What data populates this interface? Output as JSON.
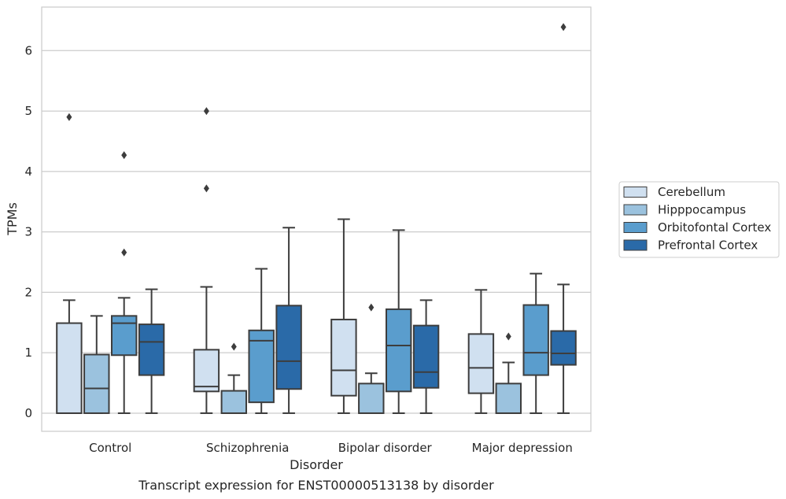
{
  "chart_data": {
    "type": "box",
    "caption": "Transcript expression for ENST00000513138 by disorder",
    "xlabel": "Disorder",
    "ylabel": "TPMs",
    "ylim": [
      -0.3,
      6.72
    ],
    "yticks": [
      0,
      1,
      2,
      3,
      4,
      5,
      6
    ],
    "grid": true,
    "legend_position": "right",
    "categories": [
      "Control",
      "Schizophrenia",
      "Bipolar disorder",
      "Major depression"
    ],
    "series": [
      {
        "name": "Cerebellum",
        "color": "#d0e0f0",
        "boxes": [
          {
            "whislo": 0,
            "q1": 0,
            "med": 0,
            "q3": 1.49,
            "whishi": 1.87,
            "fliers": [
              4.9
            ]
          },
          {
            "whislo": 0,
            "q1": 0.36,
            "med": 0.44,
            "q3": 1.05,
            "whishi": 2.09,
            "fliers": [
              3.72,
              5.0
            ]
          },
          {
            "whislo": 0,
            "q1": 0.29,
            "med": 0.71,
            "q3": 1.55,
            "whishi": 3.21,
            "fliers": []
          },
          {
            "whislo": 0,
            "q1": 0.33,
            "med": 0.75,
            "q3": 1.31,
            "whishi": 2.04,
            "fliers": []
          }
        ]
      },
      {
        "name": "Hipppocampus",
        "color": "#9bc2de",
        "boxes": [
          {
            "whislo": 0,
            "q1": 0,
            "med": 0.41,
            "q3": 0.97,
            "whishi": 1.61,
            "fliers": []
          },
          {
            "whislo": 0,
            "q1": 0,
            "med": 0,
            "q3": 0.37,
            "whishi": 0.63,
            "fliers": [
              1.1
            ]
          },
          {
            "whislo": 0,
            "q1": 0,
            "med": 0,
            "q3": 0.49,
            "whishi": 0.66,
            "fliers": [
              1.75
            ]
          },
          {
            "whislo": 0,
            "q1": 0,
            "med": 0,
            "q3": 0.49,
            "whishi": 0.84,
            "fliers": [
              1.27
            ]
          }
        ]
      },
      {
        "name": "Orbitofontal Cortex",
        "color": "#5a9dcd",
        "boxes": [
          {
            "whislo": 0,
            "q1": 0.96,
            "med": 1.49,
            "q3": 1.61,
            "whishi": 1.91,
            "fliers": [
              2.66,
              4.27
            ]
          },
          {
            "whislo": 0,
            "q1": 0.18,
            "med": 1.2,
            "q3": 1.37,
            "whishi": 2.39,
            "fliers": []
          },
          {
            "whislo": 0,
            "q1": 0.36,
            "med": 1.12,
            "q3": 1.72,
            "whishi": 3.03,
            "fliers": []
          },
          {
            "whislo": 0,
            "q1": 0.63,
            "med": 1.0,
            "q3": 1.79,
            "whishi": 2.31,
            "fliers": []
          }
        ]
      },
      {
        "name": "Prefrontal Cortex",
        "color": "#2a6aa8",
        "boxes": [
          {
            "whislo": 0,
            "q1": 0.63,
            "med": 1.18,
            "q3": 1.47,
            "whishi": 2.05,
            "fliers": []
          },
          {
            "whislo": 0,
            "q1": 0.4,
            "med": 0.86,
            "q3": 1.78,
            "whishi": 3.07,
            "fliers": []
          },
          {
            "whislo": 0,
            "q1": 0.42,
            "med": 0.68,
            "q3": 1.45,
            "whishi": 1.87,
            "fliers": []
          },
          {
            "whislo": 0,
            "q1": 0.8,
            "med": 0.99,
            "q3": 1.36,
            "whishi": 2.13,
            "fliers": [
              6.39
            ]
          }
        ]
      }
    ]
  }
}
